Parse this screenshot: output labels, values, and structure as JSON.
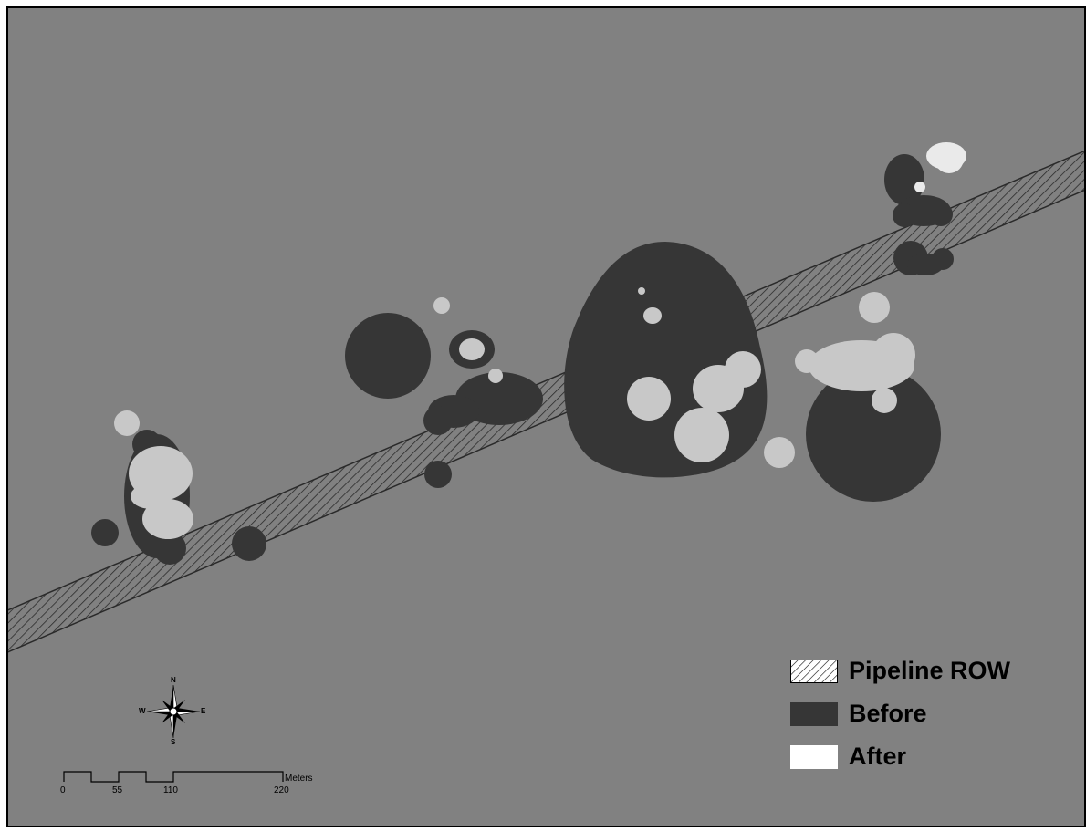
{
  "colors": {
    "background": "#818181",
    "before": "#363636",
    "after": "#c8c8c8",
    "after_bright": "#eaeaea",
    "hatch": "#2a2a2a"
  },
  "legend": {
    "items": [
      {
        "label": "Pipeline ROW",
        "swatch": "hatch"
      },
      {
        "label": "Before",
        "swatch": "before"
      },
      {
        "label": "After",
        "swatch": "after"
      }
    ]
  },
  "compass": {
    "n": "N",
    "s": "S",
    "e": "E",
    "w": "W",
    "icon": "north-arrow-compass-icon"
  },
  "scale": {
    "ticks": [
      "0",
      "55",
      "110",
      "220"
    ],
    "unit": "Meters"
  }
}
